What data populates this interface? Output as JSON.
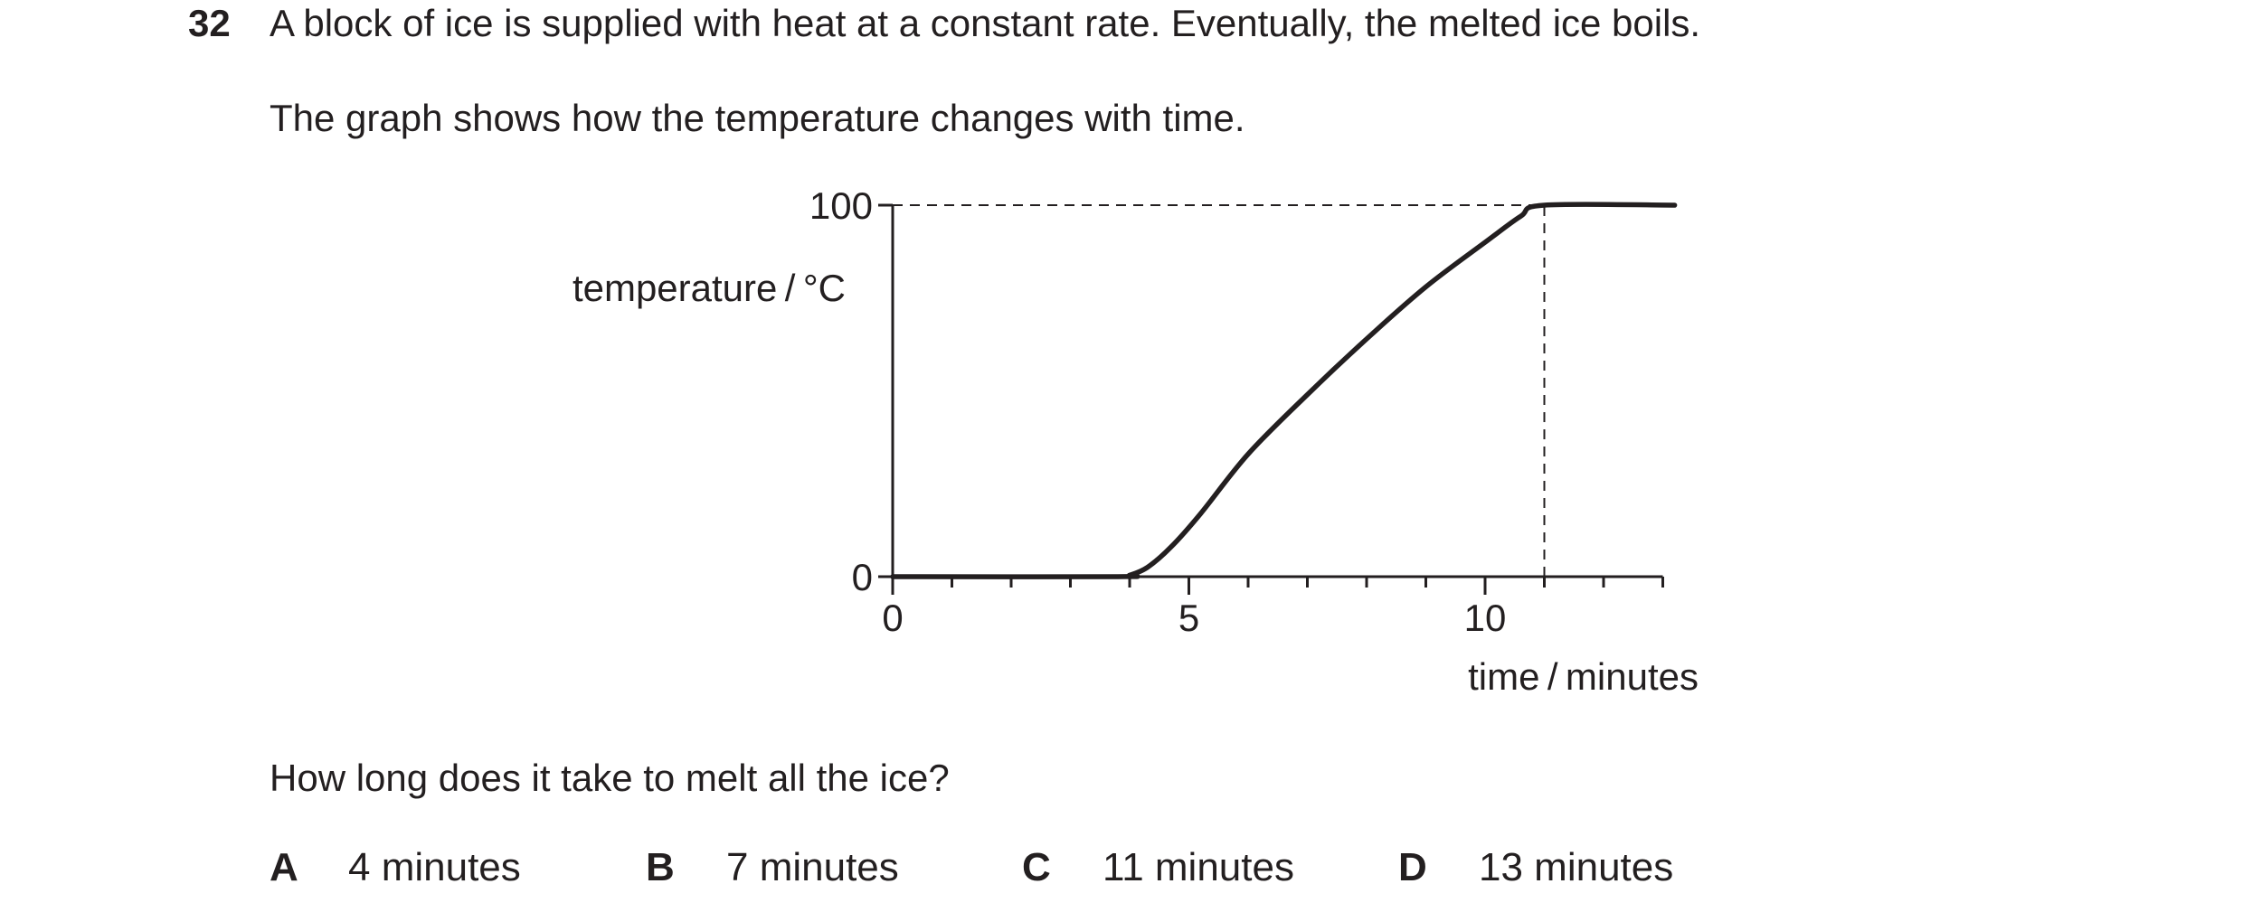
{
  "question": {
    "number": "32",
    "line1": "A block of ice is supplied with heat at a constant rate. Eventually, the melted ice boils.",
    "line2": "The graph shows how the temperature changes with time.",
    "prompt": "How long does it take to melt all the ice?"
  },
  "chart_data": {
    "type": "line",
    "title": "",
    "xlabel": "time / minutes",
    "ylabel": "temperature / °C",
    "xlim": [
      0,
      13
    ],
    "ylim": [
      0,
      100
    ],
    "x_ticks_labeled": [
      "0",
      "5",
      "10"
    ],
    "y_ticks_labeled": [
      "0",
      "100"
    ],
    "x_minor_tick_step": 1,
    "grid": false,
    "reference_lines": [
      {
        "type": "horizontal",
        "y": 100,
        "x_from": 0,
        "x_to": 11,
        "style": "dashed"
      },
      {
        "type": "vertical",
        "x": 11,
        "y_from": 0,
        "y_to": 100,
        "style": "dashed"
      }
    ],
    "series": [
      {
        "x": [
          0,
          3.8,
          4.0,
          4.3,
          4.7,
          5.2,
          6.0,
          7.0,
          8.0,
          9.0,
          10.0,
          10.6,
          11.0,
          13.2
        ],
        "y": [
          0,
          0,
          0.4,
          2.5,
          8.0,
          17.0,
          33.0,
          49.0,
          64.0,
          78.0,
          90.0,
          97.0,
          100,
          100
        ]
      }
    ]
  },
  "options": [
    {
      "letter": "A",
      "text": "4 minutes"
    },
    {
      "letter": "B",
      "text": "7 minutes"
    },
    {
      "letter": "C",
      "text": "11 minutes"
    },
    {
      "letter": "D",
      "text": "13 minutes"
    }
  ]
}
